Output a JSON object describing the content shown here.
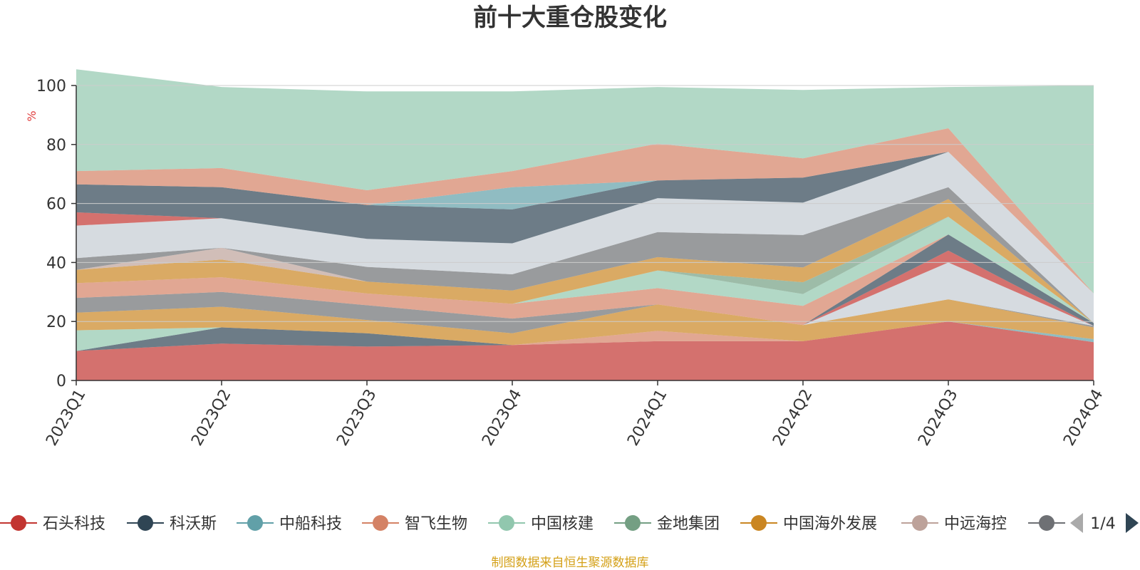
{
  "chart_data": {
    "type": "area",
    "title": "前十大重仓股变化",
    "ylabel": "%",
    "ylim": [
      0,
      100
    ],
    "yticks": [
      0,
      20,
      40,
      60,
      80,
      100
    ],
    "grid": true,
    "stacked": true,
    "categories": [
      "2023Q1",
      "2023Q2",
      "2023Q3",
      "2023Q4",
      "2024Q1",
      "2024Q2",
      "2024Q3",
      "2024Q4"
    ],
    "series": [
      {
        "name": "石头科技",
        "color": "#c23531",
        "values": [
          10,
          12.5,
          11.5,
          12,
          13.3,
          13.3,
          20,
          13
        ]
      },
      {
        "name": "科沃斯",
        "color": "#2f4554",
        "values": [
          0,
          5.5,
          4.5,
          0,
          0,
          0,
          0,
          0
        ]
      },
      {
        "name": "中船科技",
        "color": "#61a0a8",
        "values": [
          0,
          0,
          0,
          0,
          0,
          0,
          0,
          1
        ]
      },
      {
        "name": "智飞生物",
        "color": "#d48265",
        "values": [
          0,
          0,
          0,
          0,
          3.5,
          0,
          0,
          0
        ]
      },
      {
        "name": "中国核建",
        "color": "#91c7ae",
        "values": [
          7,
          0,
          0,
          0,
          0,
          0,
          0,
          0
        ]
      },
      {
        "name": "金地集团",
        "color": "#749f83",
        "values": [
          0,
          0,
          0,
          0,
          0,
          0,
          0,
          0
        ]
      },
      {
        "name": "中国海外发展",
        "color": "#ca8622",
        "values": [
          6,
          7,
          4.5,
          4,
          9,
          5.5,
          7.5,
          4
        ]
      },
      {
        "name": "中远海控",
        "color": "#bda29a",
        "values": [
          0,
          0,
          0,
          0,
          0,
          0,
          0,
          0
        ]
      },
      {
        "name": "",
        "color": "#6e7074",
        "values": [
          5,
          5,
          5,
          5,
          0,
          0,
          0,
          0.5
        ]
      },
      {
        "name": "",
        "color": "#546570",
        "values": [
          0,
          0,
          0,
          0,
          0,
          0,
          0,
          0
        ]
      },
      {
        "name": "",
        "color": "#c4ccd3",
        "values": [
          0,
          0,
          0,
          0,
          0,
          0,
          12.5,
          0
        ]
      },
      {
        "name": "",
        "color": "#c23531",
        "values": [
          0,
          0,
          0,
          0,
          0,
          0,
          4,
          0
        ]
      },
      {
        "name": "",
        "color": "#2f4554",
        "values": [
          0,
          0,
          0,
          0,
          0,
          0,
          5.5,
          1
        ]
      },
      {
        "name": "",
        "color": "#d48265",
        "values": [
          5,
          5,
          4,
          5,
          5.5,
          6.5,
          0,
          0
        ]
      },
      {
        "name": "",
        "color": "#91c7ae",
        "values": [
          0,
          0,
          0,
          0,
          6,
          4,
          6,
          0
        ]
      },
      {
        "name": "",
        "color": "#749f83",
        "values": [
          0,
          0,
          0,
          0,
          0,
          4,
          0,
          0
        ]
      },
      {
        "name": "",
        "color": "#ca8622",
        "values": [
          4.5,
          6,
          4,
          4.5,
          4.5,
          5,
          6,
          0
        ]
      },
      {
        "name": "",
        "color": "#bda29a",
        "values": [
          0,
          4,
          0,
          0,
          0,
          0,
          0,
          0
        ]
      },
      {
        "name": "",
        "color": "#6e7074",
        "values": [
          4,
          0,
          5,
          5.5,
          8.5,
          11,
          4,
          0
        ]
      },
      {
        "name": "",
        "color": "#c4ccd3",
        "values": [
          11,
          10,
          9.5,
          10.5,
          11.5,
          11,
          12,
          10
        ]
      },
      {
        "name": "",
        "color": "#c23531",
        "values": [
          4.5,
          0,
          0,
          0,
          0,
          0,
          0,
          0
        ]
      },
      {
        "name": "",
        "color": "#2f4554",
        "values": [
          9.5,
          10.5,
          11.5,
          11.5,
          6,
          8.5,
          0,
          0
        ]
      },
      {
        "name": "",
        "color": "#61a0a8",
        "values": [
          0,
          0,
          0,
          7.5,
          0,
          0,
          0,
          0
        ]
      },
      {
        "name": "",
        "color": "#d48265",
        "values": [
          4.5,
          6.5,
          5,
          5.5,
          12.5,
          6.5,
          8,
          0
        ]
      },
      {
        "name": "",
        "color": "#91c7ae",
        "values": [
          34.5,
          27.5,
          33.5,
          27,
          19.2,
          23.2,
          14,
          70.5
        ]
      }
    ]
  },
  "legend": {
    "items": [
      {
        "name": "石头科技",
        "color": "#c23531"
      },
      {
        "name": "科沃斯",
        "color": "#2f4554"
      },
      {
        "name": "中船科技",
        "color": "#61a0a8"
      },
      {
        "name": "智飞生物",
        "color": "#d48265"
      },
      {
        "name": "中国核建",
        "color": "#91c7ae"
      },
      {
        "name": "金地集团",
        "color": "#749f83"
      },
      {
        "name": "中国海外发展",
        "color": "#ca8622"
      },
      {
        "name": "中远海控",
        "color": "#bda29a"
      },
      {
        "name": "",
        "color": "#6e7074"
      }
    ],
    "page_indicator": "1/4",
    "prev_icon": "triangle-left-icon",
    "next_icon": "triangle-right-icon"
  },
  "source_note": "制图数据来自恒生聚源数据库",
  "colors": {
    "title": "#333333",
    "axis": "#333333",
    "grid": "#cccccc",
    "unit": "#e03c3c",
    "source": "#d4a017",
    "pager_active": "#2f4554",
    "pager_inactive": "#aaaaaa"
  }
}
